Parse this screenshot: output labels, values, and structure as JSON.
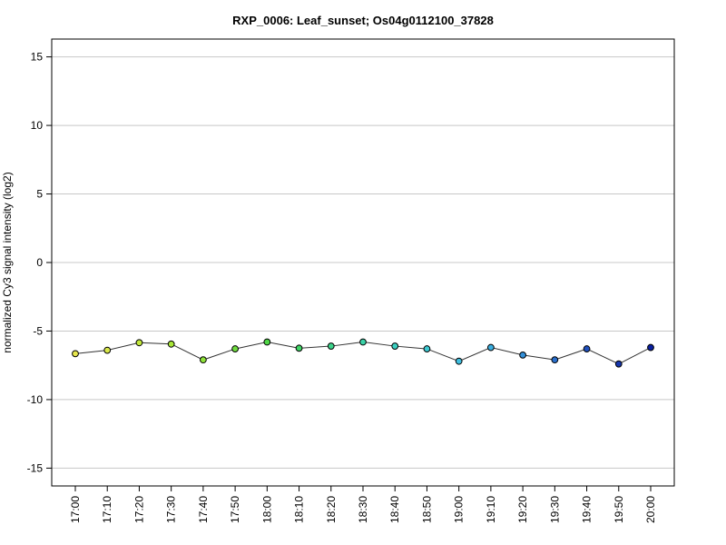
{
  "chart_data": {
    "type": "line",
    "title": "RXP_0006: Leaf_sunset; Os04g0112100_37828",
    "xlabel": "",
    "ylabel": "normalized Cy3 signal intensity (log2)",
    "ylim": [
      -16.3,
      16.3
    ],
    "yticks": [
      15,
      10,
      5,
      0,
      -5,
      -10,
      -15
    ],
    "grid": "horizontal",
    "categories": [
      "17:00",
      "17:10",
      "17:20",
      "17:30",
      "17:40",
      "17:50",
      "18:00",
      "18:10",
      "18:20",
      "18:30",
      "18:40",
      "18:50",
      "19:00",
      "19:10",
      "19:20",
      "19:30",
      "19:40",
      "19:50",
      "20:00"
    ],
    "values": [
      -6.65,
      -6.4,
      -5.85,
      -5.95,
      -7.1,
      -6.3,
      -5.8,
      -6.25,
      -6.1,
      -5.8,
      -6.1,
      -6.3,
      -7.2,
      -6.2,
      -6.75,
      -7.1,
      -6.3,
      -7.4,
      -6.2
    ],
    "point_colors": [
      "#e6e64d",
      "#d9e84a",
      "#c2e83b",
      "#a8e636",
      "#8fe23a",
      "#6fdc3f",
      "#4fd646",
      "#3fd465",
      "#3cd38a",
      "#3bd2a8",
      "#3bcfc0",
      "#3dc9d2",
      "#3fbfe0",
      "#3aaee0",
      "#338fd8",
      "#2a6fcc",
      "#2050bd",
      "#1636ad",
      "#0a1fa0"
    ],
    "line_color": "#333333",
    "grid_color": "#c8c8c8"
  }
}
